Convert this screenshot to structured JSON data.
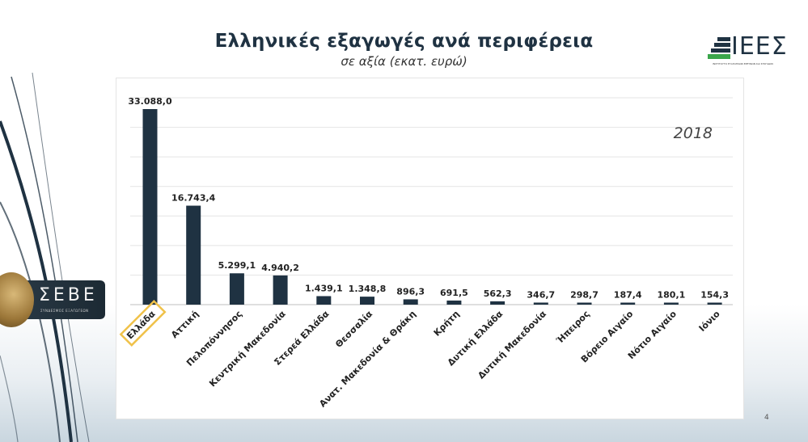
{
  "title": "Ελληνικές εξαγωγές ανά περιφέρεια",
  "subtitle": "σε αξία (εκατ. ευρώ)",
  "year_label": "2018",
  "page_number": "4",
  "logos": {
    "ieez": {
      "letters": "ΙΕΕΣ",
      "tagline": "ΙΝΣΤΙΤΟΥΤΟ ΕΞΑΓΩΓΙΚΩΝ ΕΡΕΥΝΩΝ ΚΑΙ ΣΠΟΥΔΩΝ"
    },
    "sebe": {
      "letters": "ΣΕΒΕ",
      "tagline": "ΣΥΝΔΕΣΜΟΣ ΕΞΑΓΩΓΕΩΝ"
    }
  },
  "colors": {
    "bar": "#1f3242",
    "highlight": "#f0c24a",
    "title": "#1f3242",
    "grid": "#e4e4e4"
  },
  "chart_data": {
    "type": "bar",
    "categories": [
      "Ελλάδα",
      "Αττική",
      "Πελοπόννησος",
      "Κεντρική Μακεδονία",
      "Στερεά Ελλάδα",
      "Θεσσαλία",
      "Ανατ. Μακεδονία & Θράκη",
      "Κρήτη",
      "Δυτική Ελλάδα",
      "Δυτική Μακεδονία",
      "Ήπειρος",
      "Βόρειο Αιγαίο",
      "Νότιο Αιγαίο",
      "Ιόνιο"
    ],
    "values": [
      33088.0,
      16743.4,
      5299.1,
      4940.2,
      1439.1,
      1348.8,
      896.3,
      691.5,
      562.3,
      346.7,
      298.7,
      187.4,
      180.1,
      154.3
    ],
    "data_labels": [
      "33.088,0",
      "16.743,4",
      "5.299,1",
      "4.940,2",
      "1.439,1",
      "1.348,8",
      "896,3",
      "691,5",
      "562,3",
      "346,7",
      "298,7",
      "187,4",
      "180,1",
      "154,3"
    ],
    "highlighted_category": "Ελλάδα",
    "ylim": [
      0,
      35000
    ],
    "grid": true,
    "xlabel": "",
    "ylabel": ""
  }
}
